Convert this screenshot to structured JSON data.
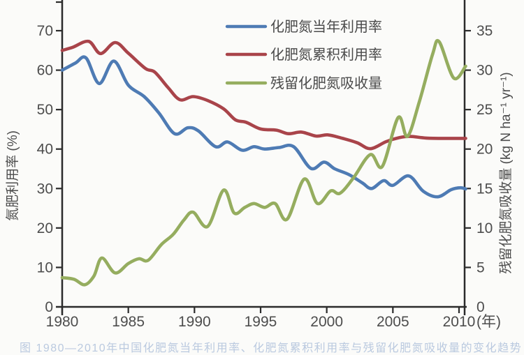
{
  "figure": {
    "background": "#fbfbf9",
    "caption_partial": "图 1980—2010年中国化肥氮当年利用率、化肥氮累积利用率与残留化肥氮吸收量的变化趋势"
  },
  "chart_data": {
    "type": "line",
    "title": "",
    "grid": false,
    "legend_position": "top-center",
    "x_axis": {
      "unit_label": "(年)",
      "ticks": [
        1980,
        1985,
        1990,
        1995,
        2000,
        2005,
        2010
      ],
      "min": 1980,
      "max": 2010.5
    },
    "y_axis_left": {
      "label": "氮肥利用率 (%)",
      "ticks": [
        0,
        10,
        20,
        30,
        40,
        50,
        60,
        70
      ],
      "min": 0,
      "max": 77.5
    },
    "y_axis_right": {
      "label": "残留化肥氮吸收量 (kg N ha⁻¹ yr⁻¹)",
      "ticks": [
        0,
        5,
        10,
        15,
        20,
        25,
        30,
        35
      ],
      "min": 0,
      "max": 38.75
    },
    "series": [
      {
        "name": "化肥氮当年利用率",
        "axis": "left",
        "color": "#4e7bb4",
        "points": [
          [
            1980,
            60.0
          ],
          [
            1981,
            61.8
          ],
          [
            1981.8,
            63.1
          ],
          [
            1982.8,
            56.6
          ],
          [
            1983.9,
            62.3
          ],
          [
            1985,
            56.2
          ],
          [
            1986.2,
            53.3
          ],
          [
            1987.3,
            49.2
          ],
          [
            1988.5,
            43.9
          ],
          [
            1989.5,
            45.4
          ],
          [
            1990.3,
            44.6
          ],
          [
            1991.6,
            40.6
          ],
          [
            1992.5,
            41.8
          ],
          [
            1993.6,
            39.7
          ],
          [
            1994.5,
            40.6
          ],
          [
            1995.3,
            40.0
          ],
          [
            1996.4,
            40.4
          ],
          [
            1997.5,
            40.6
          ],
          [
            1998.8,
            35.1
          ],
          [
            1999.8,
            36.7
          ],
          [
            2000.6,
            35.0
          ],
          [
            2001.7,
            33.5
          ],
          [
            2002.7,
            31.4
          ],
          [
            2003.4,
            30.0
          ],
          [
            2004.3,
            32.0
          ],
          [
            2005.0,
            30.8
          ],
          [
            2006.2,
            33.2
          ],
          [
            2007.3,
            29.3
          ],
          [
            2008.4,
            27.9
          ],
          [
            2009.4,
            29.7
          ],
          [
            2010.1,
            30.2
          ],
          [
            2010.5,
            29.9
          ]
        ]
      },
      {
        "name": "化肥氮累积利用率",
        "axis": "left",
        "color": "#a9444a",
        "points": [
          [
            1980,
            65.0
          ],
          [
            1980.8,
            65.8
          ],
          [
            1982.0,
            67.3
          ],
          [
            1982.9,
            64.2
          ],
          [
            1984.0,
            67.0
          ],
          [
            1985.0,
            64.3
          ],
          [
            1986.3,
            60.4
          ],
          [
            1987.0,
            59.5
          ],
          [
            1988.0,
            55.6
          ],
          [
            1988.9,
            52.5
          ],
          [
            1989.9,
            53.3
          ],
          [
            1991.0,
            52.3
          ],
          [
            1992.2,
            50.2
          ],
          [
            1993.1,
            47.4
          ],
          [
            1993.9,
            46.8
          ],
          [
            1995.0,
            45.1
          ],
          [
            1996.2,
            44.8
          ],
          [
            1997.1,
            43.9
          ],
          [
            1998.1,
            44.3
          ],
          [
            1999.2,
            43.3
          ],
          [
            2000.1,
            43.6
          ],
          [
            2001.2,
            42.7
          ],
          [
            2002.3,
            41.6
          ],
          [
            2003.3,
            40.1
          ],
          [
            2004.5,
            41.9
          ],
          [
            2005.5,
            42.9
          ],
          [
            2006.3,
            43.2
          ],
          [
            2007.5,
            42.8
          ],
          [
            2009.0,
            42.7
          ],
          [
            2010.5,
            42.7
          ]
        ]
      },
      {
        "name": "残留化肥氮吸收量",
        "axis": "right",
        "color": "#95ad5f",
        "points": [
          [
            1980,
            3.7
          ],
          [
            1980.9,
            3.5
          ],
          [
            1981.7,
            2.8
          ],
          [
            1982.4,
            3.9
          ],
          [
            1983.0,
            6.2
          ],
          [
            1984.0,
            4.3
          ],
          [
            1985.0,
            5.5
          ],
          [
            1985.8,
            6.1
          ],
          [
            1986.5,
            5.9
          ],
          [
            1987.5,
            7.9
          ],
          [
            1988.4,
            9.2
          ],
          [
            1989.2,
            11.0
          ],
          [
            1989.9,
            12.0
          ],
          [
            1991.0,
            10.2
          ],
          [
            1992.2,
            14.8
          ],
          [
            1993.0,
            11.9
          ],
          [
            1993.8,
            12.6
          ],
          [
            1994.5,
            13.1
          ],
          [
            1995.3,
            12.6
          ],
          [
            1996.1,
            13.1
          ],
          [
            1997.0,
            11.1
          ],
          [
            1998.3,
            16.2
          ],
          [
            1999.3,
            13.1
          ],
          [
            2000.3,
            14.7
          ],
          [
            2001.0,
            14.4
          ],
          [
            2002.0,
            16.3
          ],
          [
            2003.3,
            19.3
          ],
          [
            2004.2,
            17.8
          ],
          [
            2005.4,
            24.0
          ],
          [
            2006.1,
            21.6
          ],
          [
            2007.0,
            26.0
          ],
          [
            2008.0,
            32.0
          ],
          [
            2008.5,
            33.6
          ],
          [
            2009.6,
            29.0
          ],
          [
            2010.5,
            30.5
          ]
        ]
      }
    ]
  }
}
